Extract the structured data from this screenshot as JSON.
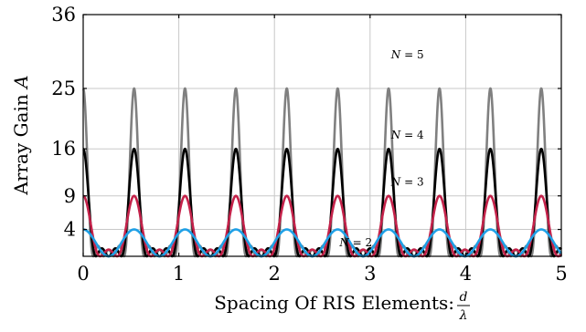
{
  "chart_data": {
    "type": "line",
    "xlabel": "Spacing Of RIS Elements:",
    "xlabel_fraction": {
      "numerator": "d",
      "denominator": "λ"
    },
    "ylabel_text": "Array Gain",
    "ylabel_symbol": "A",
    "xlim": [
      0,
      5
    ],
    "ylim": [
      0,
      36
    ],
    "xticks": [
      0,
      1,
      2,
      3,
      4,
      5
    ],
    "yticks": [
      4,
      9,
      16,
      25,
      36
    ],
    "xtick_labels": [
      "0",
      "1",
      "2",
      "3",
      "4",
      "5"
    ],
    "ytick_labels": [
      "4",
      "9",
      "16",
      "25",
      "36"
    ],
    "grid": true,
    "series": [
      {
        "name": "N = 2",
        "label_symbol": "N",
        "label_value": "2",
        "N": 2,
        "color": "#1fa0e6",
        "label_pos": {
          "x": 2.68,
          "y": 1.5
        }
      },
      {
        "name": "N = 3",
        "label_symbol": "N",
        "label_value": "3",
        "N": 3,
        "color": "#c4224a",
        "label_pos": {
          "x": 3.22,
          "y": 10.5
        }
      },
      {
        "name": "N = 4",
        "label_symbol": "N",
        "label_value": "4",
        "N": 4,
        "color": "#000000",
        "label_pos": {
          "x": 3.22,
          "y": 17.5
        }
      },
      {
        "name": "N = 5",
        "label_symbol": "N",
        "label_value": "5",
        "N": 5,
        "color": "#808080",
        "label_pos": {
          "x": 3.22,
          "y": 29.5
        }
      }
    ],
    "model": "A = (sin(N·π·(d/λ)·(sin θ − sin φ)) / sin(π·(d/λ)·(sin θ − sin φ)))²",
    "angles": {
      "theta_over_pi": 0.45,
      "phi_over_pi": -0.35
    }
  }
}
